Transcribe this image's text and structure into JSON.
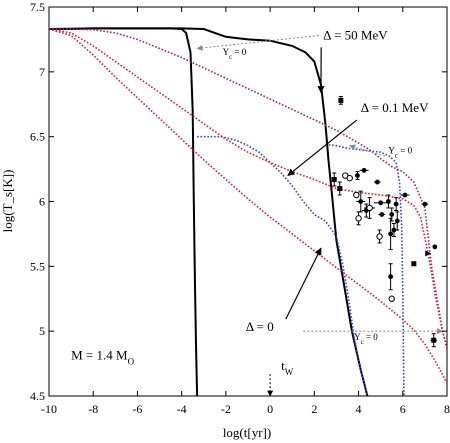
{
  "chart_data": {
    "type": "line",
    "xlabel": "log(t[yr])",
    "ylabel": "log(T_s[K])",
    "xlim": [
      -10,
      8
    ],
    "ylim": [
      4.5,
      7.5
    ],
    "xticks": [
      -10,
      -8,
      -6,
      -4,
      -2,
      0,
      2,
      4,
      6,
      8
    ],
    "yticks": [
      4.5,
      5,
      5.5,
      6,
      6.5,
      7,
      7.5
    ],
    "xtick_labels": [
      "-10",
      "-8",
      "-6",
      "-4",
      "-2",
      "0",
      "2",
      "4",
      "6",
      "8"
    ],
    "ytick_labels": [
      "4.5",
      "5",
      "5.5",
      "6",
      "6.5",
      "7",
      "7.5"
    ],
    "grid": false,
    "colors": {
      "black": "#000000",
      "blue": "#3344dd",
      "red": "#dd2222",
      "purple": "#b02060",
      "gray": "#888888"
    },
    "series": [
      {
        "color": "black",
        "style": "solid",
        "points": [
          [
            -10,
            7.33
          ],
          [
            -9,
            7.33
          ],
          [
            -8,
            7.335
          ],
          [
            -6,
            7.335
          ],
          [
            -4.5,
            7.335
          ],
          [
            -4,
            7.33
          ],
          [
            -3.8,
            7.3
          ],
          [
            -3.6,
            7.15
          ],
          [
            -3.5,
            6.7
          ],
          [
            -3.45,
            6.0
          ],
          [
            -3.4,
            5.4
          ],
          [
            -3.35,
            4.9
          ],
          [
            -3.3,
            4.5
          ]
        ]
      },
      {
        "color": "black",
        "style": "solid",
        "points": [
          [
            -10,
            7.33
          ],
          [
            -8,
            7.335
          ],
          [
            -6,
            7.335
          ],
          [
            -4,
            7.335
          ],
          [
            -3,
            7.33
          ],
          [
            -2.5,
            7.3
          ],
          [
            -2,
            7.27
          ],
          [
            -1.5,
            7.26
          ],
          [
            -1,
            7.25
          ],
          [
            0,
            7.24
          ],
          [
            1,
            7.2
          ],
          [
            1.6,
            7.15
          ],
          [
            2,
            7.08
          ],
          [
            2.3,
            6.9
          ],
          [
            2.5,
            6.6
          ],
          [
            2.65,
            6.3
          ],
          [
            2.8,
            6.05
          ],
          [
            3.0,
            5.7
          ],
          [
            3.3,
            5.4
          ],
          [
            3.7,
            5.0
          ],
          [
            4.1,
            4.7
          ],
          [
            4.4,
            4.5
          ]
        ]
      },
      {
        "color": "blue",
        "style": "dotted",
        "points": [
          [
            -3.3,
            6.5
          ],
          [
            -2.8,
            6.5
          ],
          [
            -2.2,
            6.5
          ],
          [
            -1.5,
            6.47
          ],
          [
            -1,
            6.43
          ],
          [
            -0.5,
            6.38
          ],
          [
            0,
            6.3
          ],
          [
            0.5,
            6.22
          ],
          [
            1,
            6.12
          ],
          [
            1.5,
            6.0
          ],
          [
            2,
            5.9
          ],
          [
            2.5,
            5.85
          ],
          [
            3,
            5.73
          ],
          [
            3.3,
            5.5
          ],
          [
            3.6,
            5.2
          ],
          [
            3.8,
            4.95
          ],
          [
            4.1,
            4.7
          ],
          [
            4.4,
            4.5
          ]
        ]
      },
      {
        "color": "blue",
        "style": "dotted",
        "points": [
          [
            2.5,
            6.44
          ],
          [
            3,
            6.43
          ],
          [
            3.5,
            6.41
          ],
          [
            4,
            6.4
          ],
          [
            4.5,
            6.39
          ],
          [
            5,
            6.38
          ],
          [
            5.4,
            6.35
          ],
          [
            5.7,
            6.3
          ],
          [
            5.85,
            6.15
          ],
          [
            5.95,
            5.8
          ],
          [
            6.0,
            5.3
          ],
          [
            6.03,
            4.9
          ],
          [
            6.05,
            4.5
          ]
        ]
      },
      {
        "color": "purple",
        "style": "dotted",
        "points": [
          [
            -10,
            7.33
          ],
          [
            -9,
            7.33
          ],
          [
            -8,
            7.325
          ],
          [
            -7,
            7.3
          ],
          [
            -6,
            7.25
          ],
          [
            -5,
            7.18
          ],
          [
            -4,
            7.11
          ],
          [
            -3,
            7.03
          ],
          [
            -2,
            6.95
          ],
          [
            -1,
            6.87
          ],
          [
            0,
            6.79
          ],
          [
            1,
            6.71
          ],
          [
            2,
            6.63
          ],
          [
            3,
            6.55
          ],
          [
            4,
            6.45
          ],
          [
            4.5,
            6.4
          ],
          [
            5,
            6.33
          ],
          [
            5.5,
            6.27
          ],
          [
            6,
            6.23
          ],
          [
            6.5,
            6.15
          ],
          [
            7,
            5.95
          ],
          [
            7.3,
            5.5
          ],
          [
            7.6,
            5.2
          ],
          [
            7.8,
            5.0
          ],
          [
            8,
            4.87
          ]
        ]
      },
      {
        "color": "red",
        "style": "dotted",
        "points": [
          [
            -10,
            7.33
          ],
          [
            -9,
            7.3
          ],
          [
            -8,
            7.2
          ],
          [
            -7,
            7.08
          ],
          [
            -6,
            6.96
          ],
          [
            -5,
            6.84
          ],
          [
            -4,
            6.72
          ],
          [
            -3,
            6.6
          ],
          [
            -2,
            6.48
          ],
          [
            -1,
            6.38
          ],
          [
            0,
            6.3
          ],
          [
            1,
            6.23
          ],
          [
            2,
            6.17
          ],
          [
            3,
            6.1
          ],
          [
            4,
            6.07
          ],
          [
            5,
            6.05
          ],
          [
            6,
            6.02
          ],
          [
            6.5,
            5.97
          ],
          [
            6.8,
            5.88
          ],
          [
            7,
            5.72
          ],
          [
            7.2,
            5.55
          ],
          [
            7.5,
            5.25
          ],
          [
            7.8,
            5.0
          ],
          [
            8,
            4.87
          ]
        ]
      },
      {
        "color": "red",
        "style": "dotted",
        "points": [
          [
            -10,
            7.33
          ],
          [
            -9,
            7.28
          ],
          [
            -8,
            7.13
          ],
          [
            -7,
            6.96
          ],
          [
            -6,
            6.8
          ],
          [
            -5,
            6.64
          ],
          [
            -4,
            6.48
          ],
          [
            -3,
            6.32
          ],
          [
            -2,
            6.17
          ],
          [
            -1,
            6.02
          ],
          [
            0,
            5.88
          ],
          [
            1,
            5.75
          ],
          [
            2,
            5.62
          ],
          [
            3,
            5.49
          ],
          [
            4,
            5.36
          ],
          [
            5,
            5.23
          ],
          [
            6,
            5.09
          ],
          [
            6.5,
            5.01
          ],
          [
            7,
            4.9
          ],
          [
            7.5,
            4.76
          ],
          [
            8,
            4.6
          ]
        ]
      }
    ],
    "observations": [
      {
        "x": 3.2,
        "y": 6.78,
        "marker": "square",
        "yerr": 0.03
      },
      {
        "x": 2.9,
        "y": 6.17,
        "marker": "square",
        "yerr": 0.05
      },
      {
        "x": 3.15,
        "y": 6.1,
        "marker": "square",
        "yerr": 0.05
      },
      {
        "x": 3.4,
        "y": 6.2,
        "marker": "circle-open"
      },
      {
        "x": 3.6,
        "y": 6.18,
        "marker": "circle-open"
      },
      {
        "x": 3.9,
        "y": 6.05,
        "marker": "circle-open"
      },
      {
        "x": 3.95,
        "y": 6.2,
        "marker": "circle",
        "yerr": 0.03
      },
      {
        "x": 4.1,
        "y": 6.0,
        "marker": "circle",
        "yerr": 0.08,
        "xerr": 0.2
      },
      {
        "x": 4.25,
        "y": 6.24,
        "marker": "circle",
        "xerr": 0.2
      },
      {
        "x": 4.35,
        "y": 5.93,
        "marker": "circle",
        "yerr": 0.05,
        "xerr": 0.2
      },
      {
        "x": 4.0,
        "y": 5.87,
        "marker": "circle-open",
        "yerr": 0.05
      },
      {
        "x": 4.5,
        "y": 5.95,
        "marker": "circle-open",
        "yerr": 0.08,
        "xerr": 0.25
      },
      {
        "x": 4.85,
        "y": 6.15,
        "marker": "circle",
        "xerr": 0.15
      },
      {
        "x": 5.0,
        "y": 5.99,
        "marker": "circle",
        "xerr": 0.3
      },
      {
        "x": 5.05,
        "y": 5.9,
        "marker": "circle",
        "xerr": 0.15
      },
      {
        "x": 4.95,
        "y": 5.73,
        "marker": "circle-open",
        "yerr": 0.05
      },
      {
        "x": 5.35,
        "y": 6.0,
        "marker": "circle",
        "yerr": 0.05
      },
      {
        "x": 5.5,
        "y": 5.9,
        "marker": "circle",
        "yerr": 0.05
      },
      {
        "x": 5.45,
        "y": 5.75,
        "marker": "circle",
        "yerr": 0.12
      },
      {
        "x": 5.6,
        "y": 5.78,
        "marker": "circle",
        "yerr": 0.05
      },
      {
        "x": 5.7,
        "y": 5.98,
        "marker": "circle",
        "yerr": 0.05
      },
      {
        "x": 5.75,
        "y": 5.85,
        "marker": "circle",
        "yerr": 0.07
      },
      {
        "x": 5.45,
        "y": 5.42,
        "marker": "circle",
        "yerr": 0.1
      },
      {
        "x": 5.5,
        "y": 5.25,
        "marker": "circle-open"
      },
      {
        "x": 6.1,
        "y": 6.05,
        "marker": "circle",
        "xerr": 0.2
      },
      {
        "x": 7.0,
        "y": 5.98,
        "marker": "circle",
        "xerr": 0.15
      },
      {
        "x": 7.45,
        "y": 5.65,
        "marker": "circle"
      },
      {
        "x": 6.5,
        "y": 5.52,
        "marker": "square"
      },
      {
        "x": 7.15,
        "y": 5.6,
        "marker": "triangle"
      },
      {
        "x": 7.4,
        "y": 4.93,
        "marker": "square",
        "yerr": 0.05,
        "xerr": 0.15
      }
    ],
    "annotations": [
      {
        "text": "Δ = 50 MeV",
        "x": 2.4,
        "y": 7.25,
        "arrow_to": [
          2.3,
          6.84
        ]
      },
      {
        "text": "Δ = 0.1 MeV",
        "x": 4.1,
        "y": 6.69,
        "arrow_to": [
          0.8,
          6.2
        ]
      },
      {
        "text": "Δ = 0",
        "x": -1.1,
        "y": 5.0,
        "arrow_to": [
          2.3,
          5.64
        ]
      },
      {
        "text": "M = 1.4 M",
        "subscript": "O",
        "x": -9.0,
        "y": 4.78
      },
      {
        "text": "t",
        "subscript": "W",
        "x": 0.5,
        "y": 4.7,
        "arrow_to": [
          0,
          4.5
        ]
      },
      {
        "text": "Y",
        "subscript": "c",
        "suffix": " = 0",
        "x": -2.15,
        "y": 7.13,
        "arrow_from": [
          2.2,
          7.28
        ],
        "arrow_to": [
          -3.3,
          7.18
        ]
      },
      {
        "text": "Y",
        "subscript": "c",
        "suffix": " = 0",
        "x": 5.35,
        "y": 6.37,
        "arrow_from": [
          5.2,
          6.35
        ],
        "arrow_to": [
          3.6,
          6.43
        ]
      },
      {
        "text": "Y",
        "subscript": "c",
        "suffix": " = 0",
        "x": 3.8,
        "y": 4.93,
        "arrow_from": [
          1.5,
          5.0
        ],
        "arrow_to": [
          7.8,
          5.0
        ]
      }
    ]
  }
}
